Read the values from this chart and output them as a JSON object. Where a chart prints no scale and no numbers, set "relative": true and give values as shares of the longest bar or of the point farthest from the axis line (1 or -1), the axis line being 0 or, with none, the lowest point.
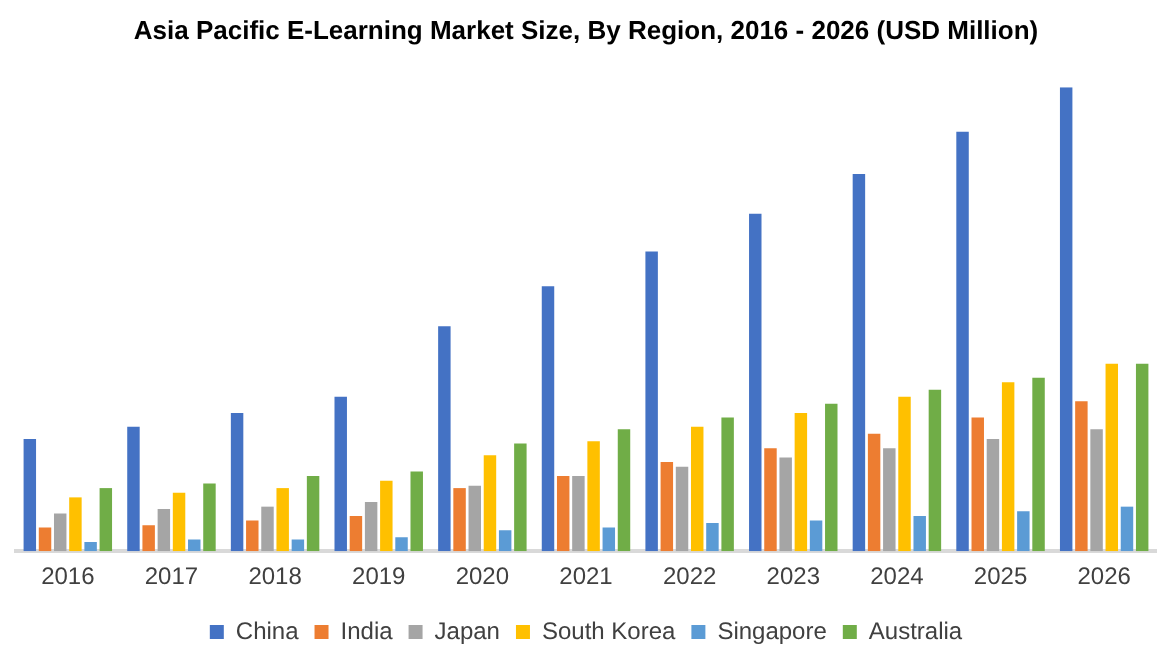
{
  "chart_data": {
    "type": "bar",
    "title": "Asia Pacific E-Learning Market Size, By Region, 2016 - 2026 (USD Million)",
    "relative": true,
    "grid": false,
    "legend": "bottom",
    "categories": [
      "2016",
      "2017",
      "2018",
      "2019",
      "2020",
      "2021",
      "2022",
      "2023",
      "2024",
      "2025",
      "2026"
    ],
    "series": [
      {
        "name": "China",
        "color": "#4472c4",
        "values": [
          0.242,
          0.268,
          0.298,
          0.333,
          0.485,
          0.571,
          0.646,
          0.727,
          0.813,
          0.904,
          1
        ]
      },
      {
        "name": "India",
        "color": "#ed7d31",
        "values": [
          0.051,
          0.056,
          0.066,
          0.076,
          0.136,
          0.162,
          0.192,
          0.222,
          0.253,
          0.288,
          0.323
        ]
      },
      {
        "name": "Japan",
        "color": "#a5a5a5",
        "values": [
          0.081,
          0.091,
          0.096,
          0.106,
          0.141,
          0.162,
          0.182,
          0.202,
          0.222,
          0.242,
          0.263
        ]
      },
      {
        "name": "South Korea",
        "color": "#ffc000",
        "values": [
          0.116,
          0.126,
          0.136,
          0.152,
          0.207,
          0.237,
          0.268,
          0.298,
          0.333,
          0.364,
          0.404
        ]
      },
      {
        "name": "Singapore",
        "color": "#5b9bd5",
        "values": [
          0.02,
          0.025,
          0.025,
          0.03,
          0.045,
          0.051,
          0.061,
          0.066,
          0.076,
          0.086,
          0.096
        ]
      },
      {
        "name": "Australia",
        "color": "#70ad47",
        "values": [
          0.136,
          0.146,
          0.162,
          0.172,
          0.232,
          0.263,
          0.288,
          0.318,
          0.348,
          0.374,
          0.404
        ]
      }
    ]
  }
}
